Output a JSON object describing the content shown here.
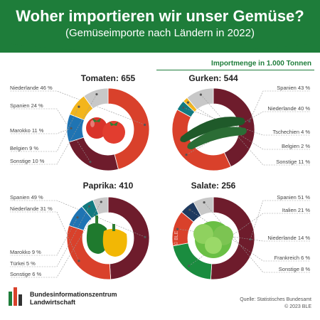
{
  "header": {
    "title": "Woher importieren wir unser Gemüse?",
    "subtitle": "(Gemüseimporte nach Ländern in 2022)",
    "unit": "Importmenge in 1.000 Tonnen"
  },
  "footer": {
    "org_line1": "Bundesinformationszentrum",
    "org_line2": "Landwirtschaft",
    "source": "Quelle: Statistisches Bundesamt",
    "copyright": "© 2023 BLE"
  },
  "colors": {
    "header_green": "#1e7d3a",
    "red": "#d9412b",
    "maroon": "#6e1c2c",
    "blue": "#1f74b3",
    "yellow": "#f3b51c",
    "grey": "#c8c8c8",
    "teal": "#127a80",
    "orange": "#e8741f",
    "green": "#1a8c3f",
    "navy": "#1f3a5f"
  },
  "chart_data": [
    {
      "type": "pie",
      "title": "Tomaten: 655",
      "icon": "tomatoes-icon",
      "slices": [
        {
          "label": "Niederlande 46 %",
          "value": 46,
          "color": "#d9412b"
        },
        {
          "label": "Spanien 24 %",
          "value": 24,
          "color": "#6e1c2c"
        },
        {
          "label": "Marokko 11 %",
          "value": 11,
          "color": "#1f74b3"
        },
        {
          "label": "Belgien 9 %",
          "value": 9,
          "color": "#f3b51c"
        },
        {
          "label": "Sonstige 10 %",
          "value": 10,
          "color": "#c8c8c8"
        }
      ]
    },
    {
      "type": "pie",
      "title": "Gurken: 544",
      "icon": "cucumbers-icon",
      "slices": [
        {
          "label": "Spanien 43 %",
          "value": 43,
          "color": "#6e1c2c"
        },
        {
          "label": "Niederlande 40 %",
          "value": 40,
          "color": "#d9412b"
        },
        {
          "label": "Tschechien 4 %",
          "value": 4,
          "color": "#127a80"
        },
        {
          "label": "Belgien 2 %",
          "value": 2,
          "color": "#f3b51c"
        },
        {
          "label": "Sonstige 11 %",
          "value": 11,
          "color": "#c8c8c8"
        }
      ]
    },
    {
      "type": "pie",
      "title": "Paprika: 410",
      "icon": "bell-peppers-icon",
      "slices": [
        {
          "label": "Spanien 49 %",
          "value": 49,
          "color": "#6e1c2c"
        },
        {
          "label": "Niederlande 31 %",
          "value": 31,
          "color": "#d9412b"
        },
        {
          "label": "Marokko 9 %",
          "value": 9,
          "color": "#1f74b3"
        },
        {
          "label": "Türkei 5 %",
          "value": 5,
          "color": "#127a80"
        },
        {
          "label": "Sonstige 6 %",
          "value": 6,
          "color": "#c8c8c8"
        }
      ]
    },
    {
      "type": "pie",
      "title": "Salate: 256",
      "icon": "lettuce-icon",
      "watermark": "© BLE",
      "slices": [
        {
          "label": "Spanien 51 %",
          "value": 51,
          "color": "#6e1c2c"
        },
        {
          "label": "Italien 21 %",
          "value": 21,
          "color": "#1a8c3f"
        },
        {
          "label": "Niederlande 14 %",
          "value": 14,
          "color": "#d9412b"
        },
        {
          "label": "Frankreich 6 %",
          "value": 6,
          "color": "#1f3a5f"
        },
        {
          "label": "Sonstige 8 %",
          "value": 8,
          "color": "#c8c8c8"
        }
      ]
    }
  ]
}
